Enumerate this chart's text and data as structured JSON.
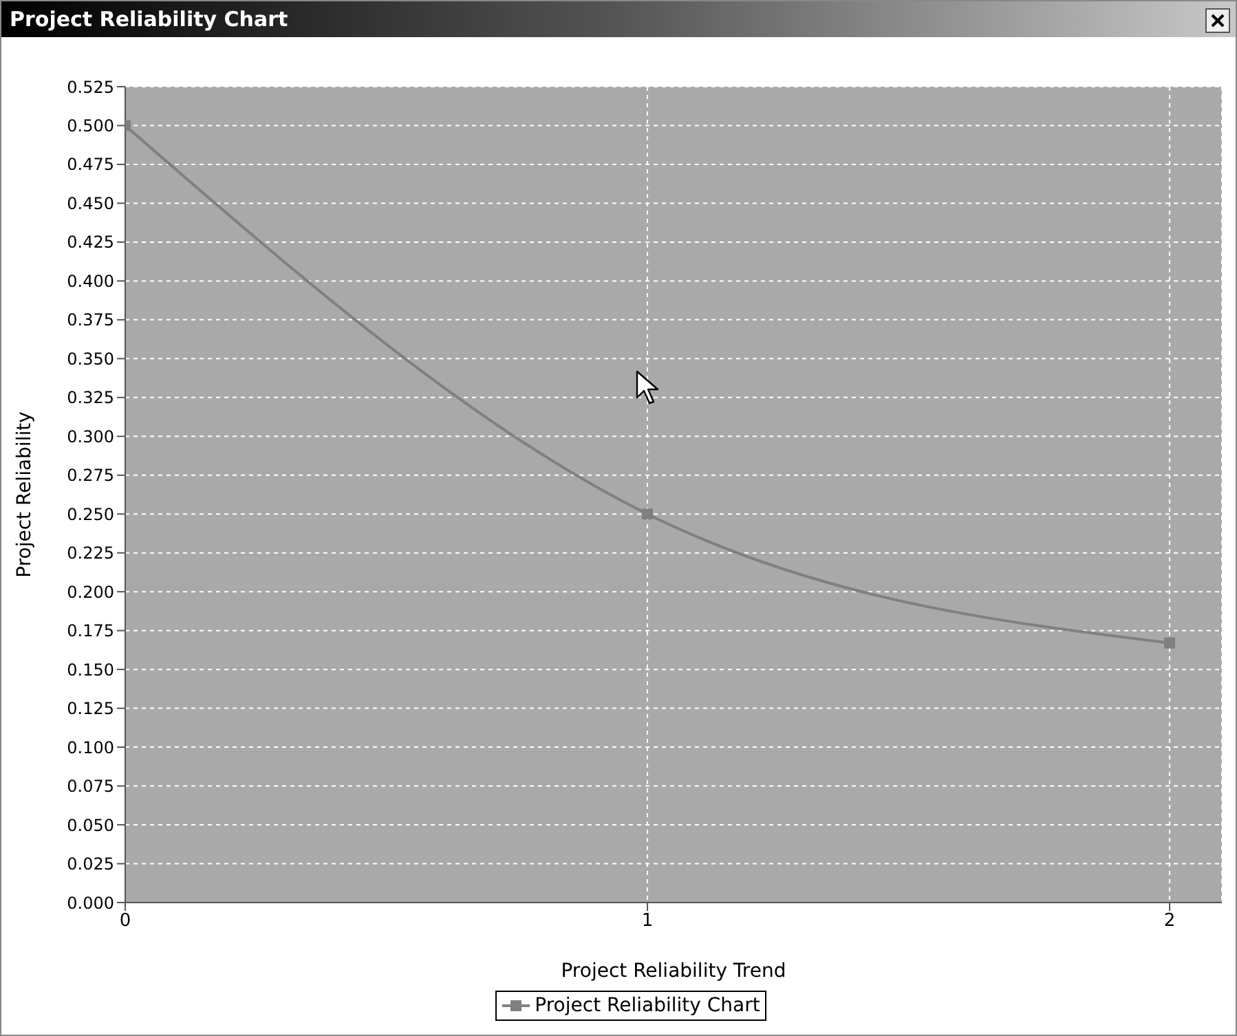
{
  "chart_data": {
    "type": "line",
    "title": "Project Reliability Chart",
    "xlabel": "Project Reliability Trend",
    "ylabel": "Project Reliability",
    "x": [
      0,
      1,
      2
    ],
    "series": [
      {
        "name": "Project Reliability Chart",
        "color": "#808080",
        "values": [
          0.5,
          0.25,
          0.167
        ]
      }
    ],
    "xlim": [
      0,
      2.1
    ],
    "xticks": [
      0,
      1,
      2
    ],
    "ylim": [
      0,
      0.525
    ],
    "yticks": [
      {
        "value": 0,
        "label": "0.000"
      },
      {
        "value": 0.025,
        "label": "0.025"
      },
      {
        "value": 0.05,
        "label": "0.050"
      },
      {
        "value": 0.075,
        "label": "0.075"
      },
      {
        "value": 0.1,
        "label": "0.100"
      },
      {
        "value": 0.125,
        "label": "0.125"
      },
      {
        "value": 0.15,
        "label": "0.150"
      },
      {
        "value": 0.175,
        "label": "0.175"
      },
      {
        "value": 0.2,
        "label": "0.200"
      },
      {
        "value": 0.225,
        "label": "0.225"
      },
      {
        "value": 0.25,
        "label": "0.250"
      },
      {
        "value": 0.275,
        "label": "0.275"
      },
      {
        "value": 0.3,
        "label": "0.300"
      },
      {
        "value": 0.325,
        "label": "0.325"
      },
      {
        "value": 0.35,
        "label": "0.350"
      },
      {
        "value": 0.375,
        "label": "0.375"
      },
      {
        "value": 0.4,
        "label": "0.400"
      },
      {
        "value": 0.425,
        "label": "0.425"
      },
      {
        "value": 0.45,
        "label": "0.450"
      },
      {
        "value": 0.475,
        "label": "0.475"
      },
      {
        "value": 0.5,
        "label": "0.500"
      },
      {
        "value": 0.525,
        "label": "0.525"
      }
    ],
    "grid": true,
    "legend": "bottom",
    "marker": "square",
    "line_style": "solid"
  }
}
